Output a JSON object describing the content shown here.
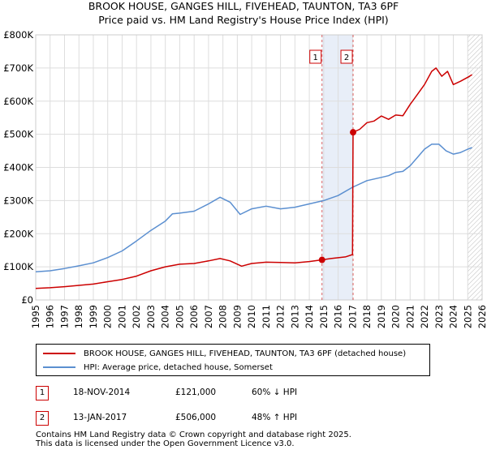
{
  "title": "BROOK HOUSE, GANGES HILL, FIVEHEAD, TAUNTON, TA3 6PF",
  "subtitle": "Price paid vs. HM Land Registry's House Price Index (HPI)",
  "colors": {
    "property": "#cc0000",
    "hpi": "#5b8fd0",
    "shade": "#e8eef8",
    "grid": "#dddddd"
  },
  "chart_data": {
    "type": "line",
    "title": "BROOK HOUSE, GANGES HILL, FIVEHEAD, TAUNTON, TA3 6PF",
    "xlabel": "",
    "ylabel": "",
    "xlim": [
      1995,
      2026
    ],
    "ylim": [
      0,
      800000
    ],
    "x_ticks": [
      "1995",
      "1996",
      "1997",
      "1998",
      "1999",
      "2000",
      "2001",
      "2002",
      "2003",
      "2004",
      "2005",
      "2006",
      "2007",
      "2008",
      "2009",
      "2010",
      "2011",
      "2012",
      "2013",
      "2014",
      "2015",
      "2016",
      "2017",
      "2018",
      "2019",
      "2020",
      "2021",
      "2022",
      "2023",
      "2024",
      "2025",
      "2026"
    ],
    "y_ticks": [
      {
        "value": 0,
        "label": "£0"
      },
      {
        "value": 100000,
        "label": "£100K"
      },
      {
        "value": 200000,
        "label": "£200K"
      },
      {
        "value": 300000,
        "label": "£300K"
      },
      {
        "value": 400000,
        "label": "£400K"
      },
      {
        "value": 500000,
        "label": "£500K"
      },
      {
        "value": 600000,
        "label": "£600K"
      },
      {
        "value": 700000,
        "label": "£700K"
      },
      {
        "value": 800000,
        "label": "£800K"
      }
    ],
    "series": [
      {
        "name": "BROOK HOUSE, GANGES HILL, FIVEHEAD, TAUNTON, TA3 6PF (detached house)",
        "color": "#cc0000",
        "x": [
          1995,
          1996,
          1997,
          1998,
          1999,
          2000,
          2001,
          2002,
          2003,
          2004,
          2005,
          2006,
          2007,
          2007.8,
          2008.5,
          2009.3,
          2010,
          2011,
          2012,
          2013,
          2014,
          2014.88,
          2015.5,
          2016.5,
          2017.0,
          2017.04,
          2017.5,
          2018,
          2018.5,
          2019,
          2019.5,
          2020,
          2020.5,
          2021,
          2021.5,
          2022,
          2022.5,
          2022.8,
          2023.2,
          2023.6,
          2024,
          2024.5,
          2025,
          2025.3
        ],
        "y": [
          35000,
          37000,
          40000,
          44000,
          48000,
          55000,
          62000,
          72000,
          88000,
          100000,
          108000,
          110000,
          118000,
          125000,
          118000,
          102000,
          110000,
          114000,
          113000,
          112000,
          116000,
          121000,
          125000,
          130000,
          137000,
          506000,
          515000,
          535000,
          540000,
          555000,
          545000,
          558000,
          556000,
          590000,
          620000,
          650000,
          690000,
          700000,
          675000,
          690000,
          650000,
          660000,
          672000,
          680000
        ]
      },
      {
        "name": "HPI: Average price, detached house, Somerset",
        "color": "#5b8fd0",
        "x": [
          1995,
          1996,
          1997,
          1998,
          1999,
          2000,
          2001,
          2002,
          2003,
          2004,
          2004.5,
          2005,
          2006,
          2007,
          2007.8,
          2008.5,
          2009.2,
          2010,
          2011,
          2012,
          2013,
          2014,
          2015,
          2016,
          2017,
          2018,
          2019,
          2019.5,
          2020,
          2020.5,
          2021,
          2021.5,
          2022,
          2022.5,
          2023,
          2023.5,
          2024,
          2024.5,
          2025,
          2025.3
        ],
        "y": [
          85000,
          88000,
          95000,
          103000,
          112000,
          128000,
          148000,
          178000,
          210000,
          238000,
          260000,
          262000,
          268000,
          290000,
          310000,
          295000,
          258000,
          275000,
          283000,
          275000,
          280000,
          290000,
          300000,
          315000,
          340000,
          360000,
          370000,
          375000,
          385000,
          388000,
          405000,
          430000,
          455000,
          470000,
          470000,
          450000,
          440000,
          445000,
          455000,
          460000
        ]
      }
    ],
    "annotations": [
      {
        "label": "1",
        "date": "18-NOV-2014",
        "x": 2014.88,
        "price": "£121,000",
        "value": 121000,
        "hpi": "60% ↓ HPI"
      },
      {
        "label": "2",
        "date": "13-JAN-2017",
        "x": 2017.04,
        "price": "£506,000",
        "value": 506000,
        "hpi": "48% ↑ HPI"
      }
    ]
  },
  "legend": {
    "property_label": "BROOK HOUSE, GANGES HILL, FIVEHEAD, TAUNTON, TA3 6PF (detached house)",
    "hpi_label": "HPI: Average price, detached house, Somerset"
  },
  "footer": {
    "line1": "Contains HM Land Registry data © Crown copyright and database right 2025.",
    "line2": "This data is licensed under the Open Government Licence v3.0."
  }
}
